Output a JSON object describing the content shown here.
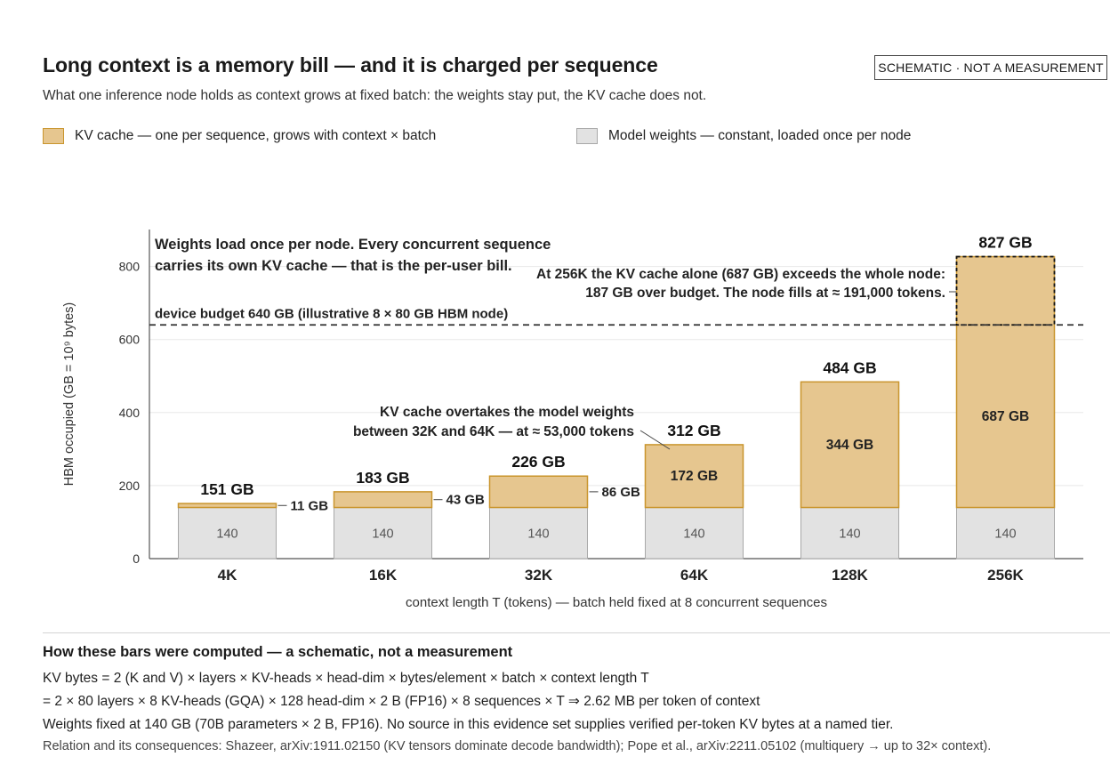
{
  "header": {
    "title": "Long context is a memory bill — and it is charged per sequence",
    "subtitle": "What one inference node holds as context grows at fixed batch: the weights stay put, the KV cache does not.",
    "badge": "SCHEMATIC · NOT A MEASUREMENT"
  },
  "legend": [
    {
      "label": "KV cache — one per sequence, grows with context × batch",
      "color": "#e6c68f"
    },
    {
      "label": "Model weights — constant, loaded once per node",
      "color": "#e2e2e2"
    }
  ],
  "chart_data": {
    "type": "bar",
    "stacked": true,
    "categories": [
      "4K",
      "16K",
      "32K",
      "64K",
      "128K",
      "256K"
    ],
    "series": [
      {
        "name": "Model weights",
        "values": [
          140,
          140,
          140,
          140,
          140,
          140
        ],
        "value_labels": [
          "140",
          "140",
          "140",
          "140",
          "140",
          "140"
        ],
        "color": "#e2e2e2",
        "stroke": "#a8a8a8"
      },
      {
        "name": "KV cache",
        "values": [
          11,
          43,
          86,
          172,
          344,
          687
        ],
        "value_labels": [
          "11 GB",
          "43 GB",
          "86 GB",
          "172 GB",
          "344 GB",
          "687 GB"
        ],
        "color": "#e6c68f",
        "stroke": "#c9952d"
      }
    ],
    "totals": [
      "151 GB",
      "183 GB",
      "226 GB",
      "312 GB",
      "484 GB",
      "827 GB"
    ],
    "xlabel": "context length T (tokens) — batch held fixed at 8 concurrent sequences",
    "ylabel": "HBM occupied (GB = 10⁹ bytes)",
    "ylim": [
      0,
      900
    ],
    "yticks": [
      0,
      200,
      400,
      600,
      800
    ],
    "grid": true,
    "budget": {
      "value": 640,
      "label": "device budget 640 GB (illustrative 8 × 80 GB HBM node)"
    },
    "annotations": {
      "top_left": [
        "Weights load once per node. Every concurrent sequence",
        "carries its own KV cache — that is the per-user bill."
      ],
      "overtake": [
        "KV cache overtakes the model weights",
        "between 32K and 64K — at ≈ 53,000 tokens"
      ],
      "over_budget": [
        "At 256K the KV cache alone (687 GB) exceeds the whole node:",
        "187 GB over budget. The node fills at ≈ 191,000 tokens."
      ]
    }
  },
  "notes": {
    "heading": "How these bars were computed — a schematic, not a measurement",
    "line1": "KV bytes = 2 (K and V) × layers × KV-heads × head-dim × bytes/element × batch × context length T",
    "line2": "= 2 × 80 layers × 8 KV-heads (GQA) × 128 head-dim × 2 B (FP16) × 8 sequences × T ⇒ 2.62 MB per token of context",
    "line3": "Weights fixed at 140 GB (70B parameters × 2 B, FP16). No source in this evidence set supplies verified per-token KV bytes at a named tier.",
    "sources": "Relation and its consequences: Shazeer, arXiv:1911.02150 (KV tensors dominate decode bandwidth); Pope et al., arXiv:2211.05102 (multiquery → up to 32× context)."
  }
}
